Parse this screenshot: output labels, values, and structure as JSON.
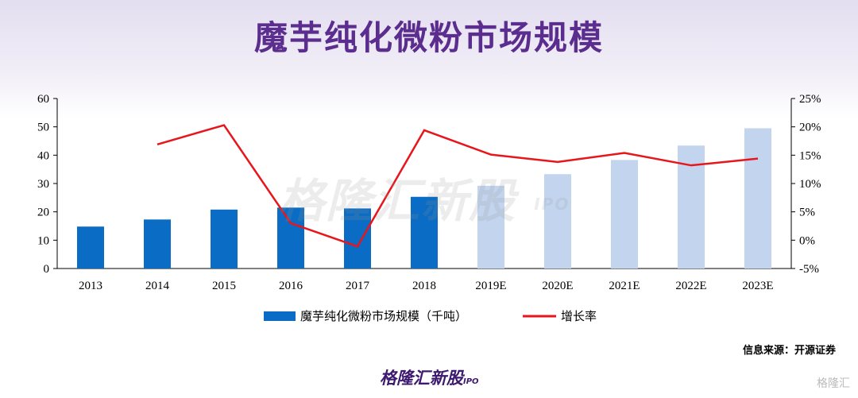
{
  "page": {
    "title": "魔芋纯化微粉市场规模"
  },
  "chart_data": {
    "type": "bar",
    "categories": [
      "2013",
      "2014",
      "2015",
      "2016",
      "2017",
      "2018",
      "2019E",
      "2020E",
      "2021E",
      "2022E",
      "2023E"
    ],
    "series": [
      {
        "name": "魔芋纯化微粉市场规模（千吨）",
        "type": "bar",
        "axis": "left",
        "values": [
          14.8,
          17.3,
          20.8,
          21.5,
          21.2,
          25.3,
          29.2,
          33.3,
          38.3,
          43.4,
          49.5
        ],
        "colors": [
          "#0a6cc4",
          "#0a6cc4",
          "#0a6cc4",
          "#0a6cc4",
          "#0a6cc4",
          "#0a6cc4",
          "#c3d5ee",
          "#c3d5ee",
          "#c3d5ee",
          "#c3d5ee",
          "#c3d5ee"
        ]
      },
      {
        "name": "增长率",
        "type": "line",
        "axis": "right",
        "color": "#e8151b",
        "values": [
          null,
          16.9,
          20.3,
          3.0,
          -1.1,
          19.4,
          15.1,
          13.8,
          15.4,
          13.2,
          14.4
        ]
      }
    ],
    "y_left": {
      "min": 0,
      "max": 60,
      "ticks": [
        "0",
        "10",
        "20",
        "30",
        "40",
        "50",
        "60"
      ]
    },
    "y_right": {
      "min": -5,
      "max": 25,
      "ticks": [
        "-5%",
        "0%",
        "5%",
        "10%",
        "15%",
        "20%",
        "25%"
      ]
    },
    "legend_position": "bottom",
    "grid": false
  },
  "watermark": {
    "text": "格隆汇新股",
    "sub": "IPO"
  },
  "source": "信息来源：开源证券",
  "brand": {
    "text": "格隆汇新股",
    "sub": "IPO"
  },
  "corner_logo": "格隆汇"
}
